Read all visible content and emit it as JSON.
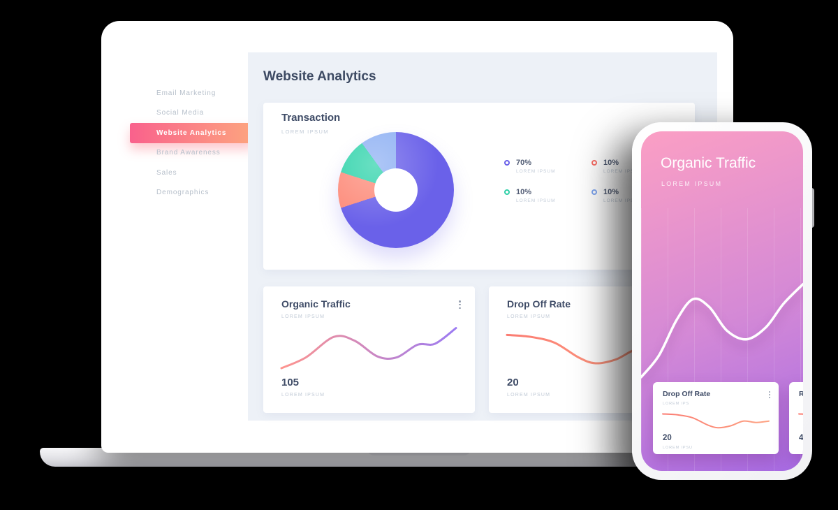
{
  "laptop": {
    "sidebar": {
      "items": [
        {
          "label": "Email Marketing"
        },
        {
          "label": "Social Media"
        },
        {
          "label": "Website Analytics"
        },
        {
          "label": "Brand Awareness"
        },
        {
          "label": "Sales"
        },
        {
          "label": "Demographics"
        }
      ],
      "active_index": 2
    },
    "main": {
      "page_title": "Website Analytics",
      "transaction": {
        "title": "Transaction",
        "subtitle": "LOREM IPSUM",
        "legend": [
          {
            "value": "70%",
            "label": "LOREM IPSUM",
            "color": "#6a61e9"
          },
          {
            "value": "10%",
            "label": "LOREM IPSUM",
            "color": "#f96e66"
          },
          {
            "value": "10%",
            "label": "LOREM IPSUM",
            "color": "#2fd0a8"
          },
          {
            "value": "10%",
            "label": "LOREM IPSUM",
            "color": "#7fa6f0"
          }
        ]
      },
      "organic": {
        "title": "Organic Traffic",
        "subtitle": "LOREM IPSUM",
        "value": "105",
        "value_label": "LOREM IPSUM"
      },
      "dropoff": {
        "title": "Drop Off Rate",
        "subtitle": "LOREM IPSUM",
        "value": "20",
        "value_label": "LOREM IPSUM"
      }
    }
  },
  "phone": {
    "title": "Organic Traffic",
    "subtitle": "LOREM IPSUM",
    "card1": {
      "title": "Drop Off Rate",
      "subtitle": "LOREM IPS",
      "value": "20",
      "value_label": "LOREM IPSU"
    },
    "card2": {
      "title": "R",
      "value": "4"
    }
  },
  "chart_data": [
    {
      "id": "transaction-donut",
      "type": "pie",
      "title": "Transaction",
      "slices": [
        {
          "label": "LOREM IPSUM",
          "value": 70,
          "color": "#6a61e9"
        },
        {
          "label": "LOREM IPSUM",
          "value": 10,
          "color": "#fd8c7b"
        },
        {
          "label": "LOREM IPSUM",
          "value": 10,
          "color": "#30d3ab"
        },
        {
          "label": "LOREM IPSUM",
          "value": 10,
          "color": "#8fb1f3"
        }
      ]
    },
    {
      "id": "organic-traffic-line",
      "type": "line",
      "title": "Organic Traffic",
      "current_value": 105,
      "color_start": "#fe948e",
      "color_end": "#9c7bf2",
      "stroke": 3,
      "points": [
        [
          0,
          90
        ],
        [
          14,
          68
        ],
        [
          30,
          26
        ],
        [
          42,
          34
        ],
        [
          55,
          66
        ],
        [
          66,
          68
        ],
        [
          78,
          42
        ],
        [
          88,
          40
        ],
        [
          100,
          8
        ]
      ]
    },
    {
      "id": "drop-off-rate-line",
      "type": "line",
      "title": "Drop Off Rate",
      "current_value": 20,
      "color_start": "#fb7c72",
      "color_end": "#fda383",
      "stroke": 3,
      "points": [
        [
          0,
          22
        ],
        [
          14,
          26
        ],
        [
          28,
          38
        ],
        [
          42,
          68
        ],
        [
          52,
          80
        ],
        [
          64,
          72
        ],
        [
          76,
          52
        ],
        [
          88,
          58
        ],
        [
          100,
          52
        ]
      ]
    },
    {
      "id": "phone-organic-line",
      "type": "line",
      "title": "Organic Traffic",
      "color_start": "#ffffff",
      "color_end": "#ffffff",
      "stroke": 3.5,
      "points": [
        [
          0,
          98
        ],
        [
          11,
          78
        ],
        [
          22,
          45
        ],
        [
          32,
          26
        ],
        [
          42,
          33
        ],
        [
          53,
          55
        ],
        [
          65,
          63
        ],
        [
          77,
          52
        ],
        [
          88,
          30
        ],
        [
          100,
          12
        ]
      ]
    },
    {
      "id": "phone-drop-off-line",
      "type": "line",
      "title": "Drop Off Rate",
      "current_value": 20,
      "color_start": "#fb7c72",
      "color_end": "#fda383",
      "stroke": 2,
      "points": [
        [
          0,
          22
        ],
        [
          14,
          26
        ],
        [
          28,
          38
        ],
        [
          42,
          68
        ],
        [
          52,
          80
        ],
        [
          64,
          72
        ],
        [
          76,
          52
        ],
        [
          88,
          58
        ],
        [
          100,
          52
        ]
      ]
    }
  ]
}
